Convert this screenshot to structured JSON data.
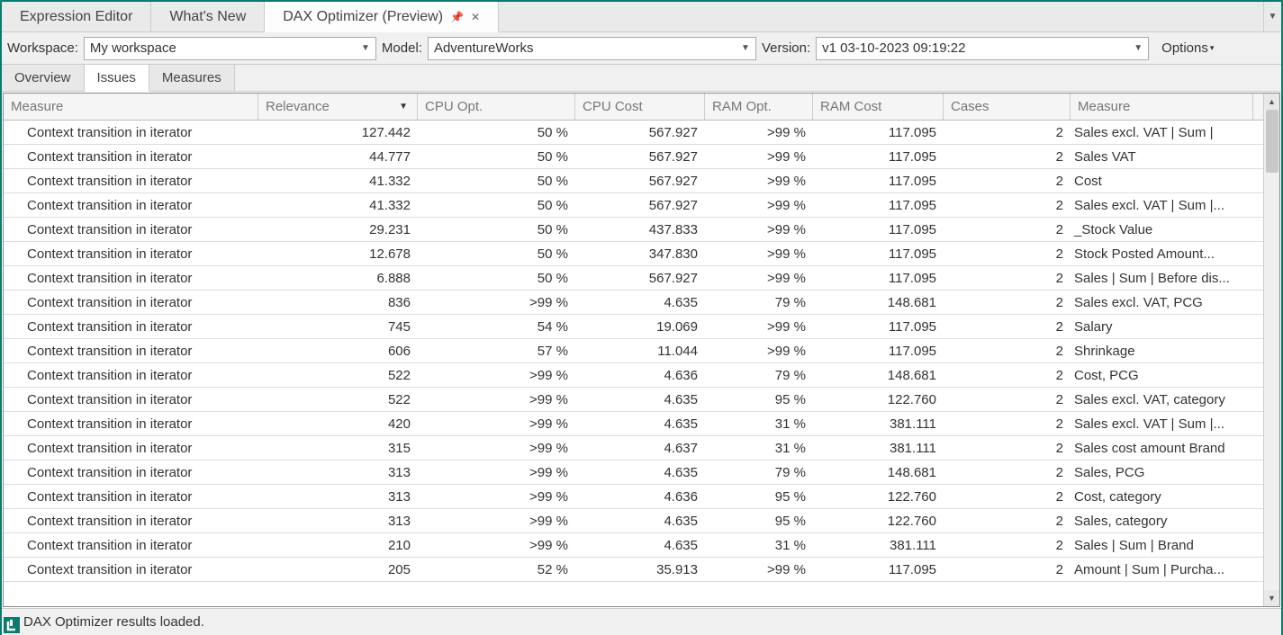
{
  "mainTabs": [
    {
      "label": "Expression Editor",
      "active": false
    },
    {
      "label": "What's New",
      "active": false
    },
    {
      "label": "DAX Optimizer (Preview)",
      "active": true,
      "pinned": true,
      "closable": true
    }
  ],
  "toolbar": {
    "workspace_label": "Workspace:",
    "workspace_value": "My workspace",
    "model_label": "Model:",
    "model_value": "AdventureWorks",
    "version_label": "Version:",
    "version_value": "v1 03-10-2023 09:19:22",
    "options_label": "Options"
  },
  "subTabs": [
    {
      "label": "Overview",
      "active": false
    },
    {
      "label": "Issues",
      "active": true
    },
    {
      "label": "Measures",
      "active": false
    }
  ],
  "columns": {
    "measure": "Measure",
    "relevance": "Relevance",
    "cpuopt": "CPU Opt.",
    "cpucost": "CPU Cost",
    "ramopt": "RAM Opt.",
    "ramcost": "RAM Cost",
    "cases": "Cases",
    "measure2": "Measure"
  },
  "rows": [
    {
      "measure": "Context transition in iterator",
      "relevance": "127.442",
      "cpuopt": "50 %",
      "cpucost": "567.927",
      "ramopt": ">99 %",
      "ramcost": "117.095",
      "cases": "2",
      "measure2": "Sales excl. VAT | Sum |"
    },
    {
      "measure": "Context transition in iterator",
      "relevance": "44.777",
      "cpuopt": "50 %",
      "cpucost": "567.927",
      "ramopt": ">99 %",
      "ramcost": "117.095",
      "cases": "2",
      "measure2": "Sales VAT"
    },
    {
      "measure": "Context transition in iterator",
      "relevance": "41.332",
      "cpuopt": "50 %",
      "cpucost": "567.927",
      "ramopt": ">99 %",
      "ramcost": "117.095",
      "cases": "2",
      "measure2": "Cost"
    },
    {
      "measure": "Context transition in iterator",
      "relevance": "41.332",
      "cpuopt": "50 %",
      "cpucost": "567.927",
      "ramopt": ">99 %",
      "ramcost": "117.095",
      "cases": "2",
      "measure2": "Sales excl. VAT | Sum |..."
    },
    {
      "measure": "Context transition in iterator",
      "relevance": "29.231",
      "cpuopt": "50 %",
      "cpucost": "437.833",
      "ramopt": ">99 %",
      "ramcost": "117.095",
      "cases": "2",
      "measure2": "_Stock Value"
    },
    {
      "measure": "Context transition in iterator",
      "relevance": "12.678",
      "cpuopt": "50 %",
      "cpucost": "347.830",
      "ramopt": ">99 %",
      "ramcost": "117.095",
      "cases": "2",
      "measure2": "Stock Posted Amount..."
    },
    {
      "measure": "Context transition in iterator",
      "relevance": "6.888",
      "cpuopt": "50 %",
      "cpucost": "567.927",
      "ramopt": ">99 %",
      "ramcost": "117.095",
      "cases": "2",
      "measure2": "Sales | Sum | Before dis..."
    },
    {
      "measure": "Context transition in iterator",
      "relevance": "836",
      "cpuopt": ">99 %",
      "cpucost": "4.635",
      "ramopt": "79 %",
      "ramcost": "148.681",
      "cases": "2",
      "measure2": "Sales excl. VAT, PCG"
    },
    {
      "measure": "Context transition in iterator",
      "relevance": "745",
      "cpuopt": "54 %",
      "cpucost": "19.069",
      "ramopt": ">99 %",
      "ramcost": "117.095",
      "cases": "2",
      "measure2": "Salary"
    },
    {
      "measure": "Context transition in iterator",
      "relevance": "606",
      "cpuopt": "57 %",
      "cpucost": "11.044",
      "ramopt": ">99 %",
      "ramcost": "117.095",
      "cases": "2",
      "measure2": "Shrinkage"
    },
    {
      "measure": "Context transition in iterator",
      "relevance": "522",
      "cpuopt": ">99 %",
      "cpucost": "4.636",
      "ramopt": "79 %",
      "ramcost": "148.681",
      "cases": "2",
      "measure2": "Cost, PCG"
    },
    {
      "measure": "Context transition in iterator",
      "relevance": "522",
      "cpuopt": ">99 %",
      "cpucost": "4.635",
      "ramopt": "95 %",
      "ramcost": "122.760",
      "cases": "2",
      "measure2": "Sales excl. VAT, category"
    },
    {
      "measure": "Context transition in iterator",
      "relevance": "420",
      "cpuopt": ">99 %",
      "cpucost": "4.635",
      "ramopt": "31 %",
      "ramcost": "381.111",
      "cases": "2",
      "measure2": "Sales excl. VAT | Sum |..."
    },
    {
      "measure": "Context transition in iterator",
      "relevance": "315",
      "cpuopt": ">99 %",
      "cpucost": "4.637",
      "ramopt": "31 %",
      "ramcost": "381.111",
      "cases": "2",
      "measure2": "Sales cost amount Brand"
    },
    {
      "measure": "Context transition in iterator",
      "relevance": "313",
      "cpuopt": ">99 %",
      "cpucost": "4.635",
      "ramopt": "79 %",
      "ramcost": "148.681",
      "cases": "2",
      "measure2": "Sales, PCG"
    },
    {
      "measure": "Context transition in iterator",
      "relevance": "313",
      "cpuopt": ">99 %",
      "cpucost": "4.636",
      "ramopt": "95 %",
      "ramcost": "122.760",
      "cases": "2",
      "measure2": "Cost, category"
    },
    {
      "measure": "Context transition in iterator",
      "relevance": "313",
      "cpuopt": ">99 %",
      "cpucost": "4.635",
      "ramopt": "95 %",
      "ramcost": "122.760",
      "cases": "2",
      "measure2": "Sales, category"
    },
    {
      "measure": "Context transition in iterator",
      "relevance": "210",
      "cpuopt": ">99 %",
      "cpucost": "4.635",
      "ramopt": "31 %",
      "ramcost": "381.111",
      "cases": "2",
      "measure2": "Sales | Sum | Brand"
    },
    {
      "measure": "Context transition in iterator",
      "relevance": "205",
      "cpuopt": "52 %",
      "cpucost": "35.913",
      "ramopt": ">99 %",
      "ramcost": "117.095",
      "cases": "2",
      "measure2": "Amount | Sum | Purcha..."
    }
  ],
  "status": "DAX Optimizer results loaded."
}
